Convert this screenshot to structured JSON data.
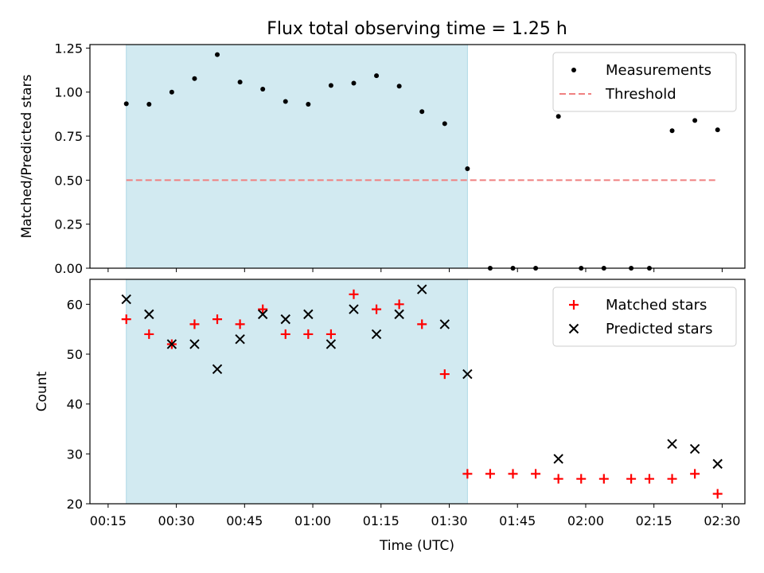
{
  "chart_data": {
    "title": "Flux total observing time = 1.25 h",
    "xlabel": "Time (UTC)",
    "x_ticks": [
      {
        "t": 15,
        "label": "00:15"
      },
      {
        "t": 30,
        "label": "00:30"
      },
      {
        "t": 45,
        "label": "00:45"
      },
      {
        "t": 60,
        "label": "01:00"
      },
      {
        "t": 75,
        "label": "01:15"
      },
      {
        "t": 90,
        "label": "01:30"
      },
      {
        "t": 105,
        "label": "01:45"
      },
      {
        "t": 120,
        "label": "02:00"
      },
      {
        "t": 135,
        "label": "02:15"
      },
      {
        "t": 150,
        "label": "02:30"
      }
    ],
    "xlim": [
      "00:11",
      "02:35"
    ],
    "shaded_interval": {
      "start": "00:19",
      "end": "01:34",
      "color": "#add8e6"
    },
    "panels": [
      {
        "type": "scatter",
        "ylabel": "Matched/Predicted stars",
        "ylim": [
          0,
          1.27
        ],
        "y_ticks": [
          "0.00",
          "0.25",
          "0.50",
          "0.75",
          "1.00",
          "1.25"
        ],
        "legend": {
          "placement": "top-right"
        },
        "series": [
          {
            "name": "Measurements",
            "marker": "dot",
            "color": "#000000",
            "points": [
              {
                "x": "00:19",
                "y": 0.934
              },
              {
                "x": "00:24",
                "y": 0.931
              },
              {
                "x": "00:29",
                "y": 1.0
              },
              {
                "x": "00:34",
                "y": 1.077
              },
              {
                "x": "00:39",
                "y": 1.213
              },
              {
                "x": "00:44",
                "y": 1.057
              },
              {
                "x": "00:49",
                "y": 1.017
              },
              {
                "x": "00:54",
                "y": 0.947
              },
              {
                "x": "00:59",
                "y": 0.931
              },
              {
                "x": "01:04",
                "y": 1.038
              },
              {
                "x": "01:09",
                "y": 1.051
              },
              {
                "x": "01:14",
                "y": 1.093
              },
              {
                "x": "01:19",
                "y": 1.034
              },
              {
                "x": "01:24",
                "y": 0.889
              },
              {
                "x": "01:29",
                "y": 0.821
              },
              {
                "x": "01:34",
                "y": 0.565
              },
              {
                "x": "01:39",
                "y": 0.0
              },
              {
                "x": "01:44",
                "y": 0.0
              },
              {
                "x": "01:49",
                "y": 0.0
              },
              {
                "x": "01:54",
                "y": 0.862
              },
              {
                "x": "01:59",
                "y": 0.0
              },
              {
                "x": "02:04",
                "y": 0.0
              },
              {
                "x": "02:10",
                "y": 0.0
              },
              {
                "x": "02:14",
                "y": 0.0
              },
              {
                "x": "02:19",
                "y": 0.781
              },
              {
                "x": "02:24",
                "y": 0.839
              },
              {
                "x": "02:29",
                "y": 0.786
              }
            ]
          },
          {
            "name": "Threshold",
            "type": "line",
            "style": "dashed",
            "color": "#f08080",
            "points": [
              {
                "x": "00:19",
                "y": 0.5
              },
              {
                "x": "02:29",
                "y": 0.5
              }
            ]
          }
        ]
      },
      {
        "type": "scatter",
        "ylabel": "Count",
        "ylim": [
          20,
          65
        ],
        "y_ticks": [
          "20",
          "30",
          "40",
          "50",
          "60"
        ],
        "legend": {
          "placement": "top-right"
        },
        "series": [
          {
            "name": "Matched stars",
            "marker": "plus",
            "color": "#ff0000",
            "points": [
              {
                "x": "00:19",
                "y": 57
              },
              {
                "x": "00:24",
                "y": 54
              },
              {
                "x": "00:29",
                "y": 52
              },
              {
                "x": "00:34",
                "y": 56
              },
              {
                "x": "00:39",
                "y": 57
              },
              {
                "x": "00:44",
                "y": 56
              },
              {
                "x": "00:49",
                "y": 59
              },
              {
                "x": "00:54",
                "y": 54
              },
              {
                "x": "00:59",
                "y": 54
              },
              {
                "x": "01:04",
                "y": 54
              },
              {
                "x": "01:09",
                "y": 62
              },
              {
                "x": "01:14",
                "y": 59
              },
              {
                "x": "01:19",
                "y": 60
              },
              {
                "x": "01:24",
                "y": 56
              },
              {
                "x": "01:29",
                "y": 46
              },
              {
                "x": "01:34",
                "y": 26
              },
              {
                "x": "01:39",
                "y": 26
              },
              {
                "x": "01:44",
                "y": 26
              },
              {
                "x": "01:49",
                "y": 26
              },
              {
                "x": "01:54",
                "y": 25
              },
              {
                "x": "01:59",
                "y": 25
              },
              {
                "x": "02:04",
                "y": 25
              },
              {
                "x": "02:10",
                "y": 25
              },
              {
                "x": "02:14",
                "y": 25
              },
              {
                "x": "02:19",
                "y": 25
              },
              {
                "x": "02:24",
                "y": 26
              },
              {
                "x": "02:29",
                "y": 22
              }
            ]
          },
          {
            "name": "Predicted stars",
            "marker": "x",
            "color": "#000000",
            "points": [
              {
                "x": "00:19",
                "y": 61
              },
              {
                "x": "00:24",
                "y": 58
              },
              {
                "x": "00:29",
                "y": 52
              },
              {
                "x": "00:34",
                "y": 52
              },
              {
                "x": "00:39",
                "y": 47
              },
              {
                "x": "00:44",
                "y": 53
              },
              {
                "x": "00:49",
                "y": 58
              },
              {
                "x": "00:54",
                "y": 57
              },
              {
                "x": "00:59",
                "y": 58
              },
              {
                "x": "01:04",
                "y": 52
              },
              {
                "x": "01:09",
                "y": 59
              },
              {
                "x": "01:14",
                "y": 54
              },
              {
                "x": "01:19",
                "y": 58
              },
              {
                "x": "01:24",
                "y": 63
              },
              {
                "x": "01:29",
                "y": 56
              },
              {
                "x": "01:34",
                "y": 46
              },
              {
                "x": "01:54",
                "y": 29
              },
              {
                "x": "02:19",
                "y": 32
              },
              {
                "x": "02:24",
                "y": 31
              },
              {
                "x": "02:29",
                "y": 28
              }
            ]
          }
        ]
      }
    ]
  }
}
